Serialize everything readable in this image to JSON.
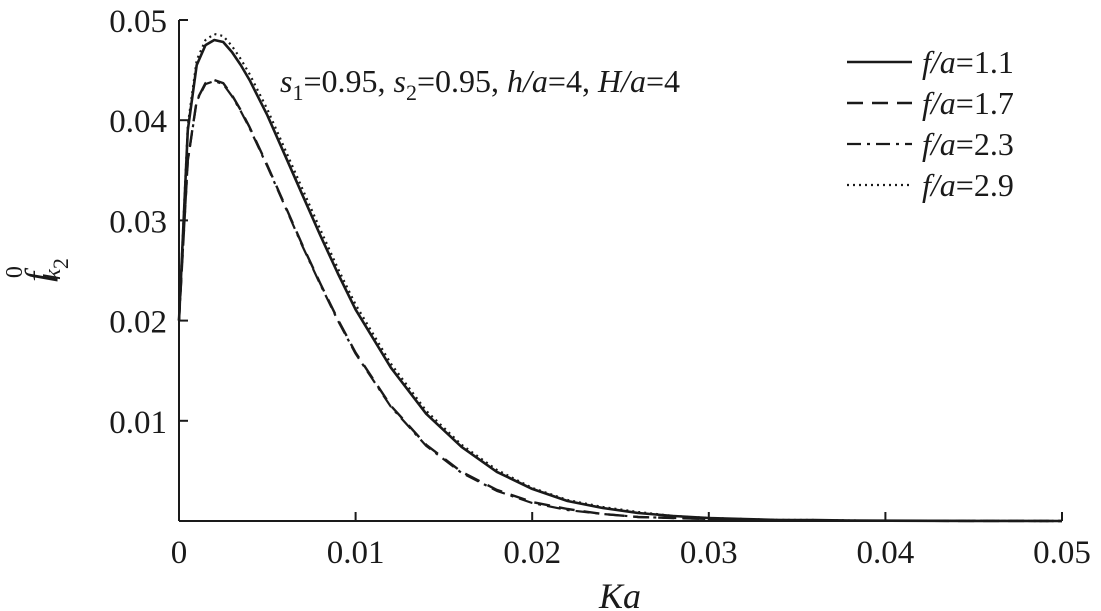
{
  "chart_data": {
    "type": "line",
    "xlabel": "Ka",
    "ylabel_main": "f",
    "ylabel_sup": "0",
    "ylabel_sub": "k",
    "ylabel_subsub": "2",
    "xlim": [
      0,
      0.05
    ],
    "ylim": [
      0,
      0.05
    ],
    "xticks": [
      {
        "value": 0,
        "label": "0"
      },
      {
        "value": 0.01,
        "label": "0.01"
      },
      {
        "value": 0.02,
        "label": "0.02"
      },
      {
        "value": 0.03,
        "label": "0.03"
      },
      {
        "value": 0.04,
        "label": "0.04"
      },
      {
        "value": 0.05,
        "label": "0.05"
      }
    ],
    "yticks": [
      {
        "value": 0.01,
        "label": "0.01"
      },
      {
        "value": 0.02,
        "label": "0.02"
      },
      {
        "value": 0.03,
        "label": "0.03"
      },
      {
        "value": 0.04,
        "label": "0.04"
      },
      {
        "value": 0.05,
        "label": "0.05"
      }
    ],
    "annotation": {
      "s1": "s",
      "s1_sub": "1",
      "s1_val": "=0.95, ",
      "s2": "s",
      "s2_sub": "2",
      "s2_val": "=0.95, ",
      "h": "h/a",
      "h_val": "=4, ",
      "H": "H/a",
      "H_val": "=4"
    },
    "grid": false,
    "legend_position": "top-right",
    "series": [
      {
        "name": "f/a=1.1",
        "name_var": "f/a",
        "name_val": "=1.1",
        "style": "solid",
        "x": [
          0,
          0.0005,
          0.001,
          0.0015,
          0.002,
          0.0025,
          0.003,
          0.0035,
          0.004,
          0.005,
          0.006,
          0.007,
          0.008,
          0.009,
          0.01,
          0.012,
          0.014,
          0.016,
          0.018,
          0.02,
          0.022,
          0.024,
          0.026,
          0.028,
          0.03,
          0.032,
          0.034,
          0.036,
          0.038,
          0.04,
          0.045,
          0.05
        ],
        "y": [
          0.02,
          0.039,
          0.0455,
          0.0475,
          0.048,
          0.0478,
          0.0468,
          0.0455,
          0.044,
          0.0405,
          0.0365,
          0.0325,
          0.0285,
          0.0247,
          0.0211,
          0.0153,
          0.0107,
          0.0074,
          0.0049,
          0.0032,
          0.002,
          0.0013,
          0.0008,
          0.0005,
          0.0003,
          0.0002,
          0.0001,
          0.0001,
          5e-05,
          3e-05,
          1e-05,
          0.0
        ]
      },
      {
        "name": "f/a=1.7",
        "name_var": "f/a",
        "name_val": "=1.7",
        "style": "dashed",
        "x": [
          0,
          0.0005,
          0.001,
          0.0015,
          0.002,
          0.0025,
          0.003,
          0.0035,
          0.004,
          0.005,
          0.006,
          0.007,
          0.008,
          0.009,
          0.01,
          0.012,
          0.014,
          0.016,
          0.018,
          0.02,
          0.022,
          0.024,
          0.026,
          0.028,
          0.03,
          0.032,
          0.034,
          0.036,
          0.038,
          0.04,
          0.045,
          0.05
        ],
        "y": [
          0.02,
          0.036,
          0.042,
          0.0437,
          0.044,
          0.0437,
          0.0425,
          0.041,
          0.0393,
          0.0355,
          0.0315,
          0.0275,
          0.0237,
          0.0201,
          0.0168,
          0.0115,
          0.0076,
          0.0049,
          0.0031,
          0.0019,
          0.0012,
          0.0007,
          0.0004,
          0.0003,
          0.0002,
          0.0001,
          0.0001,
          5e-05,
          3e-05,
          2e-05,
          1e-05,
          0.0
        ]
      },
      {
        "name": "f/a=2.3",
        "name_var": "f/a",
        "name_val": "=2.3",
        "style": "dashdot",
        "x": [
          0,
          0.0005,
          0.001,
          0.0015,
          0.002,
          0.0025,
          0.003,
          0.0035,
          0.004,
          0.005,
          0.006,
          0.007,
          0.008,
          0.009,
          0.01,
          0.012,
          0.014,
          0.016,
          0.018,
          0.02,
          0.022,
          0.024,
          0.026,
          0.028,
          0.03,
          0.032,
          0.034,
          0.036,
          0.038,
          0.04,
          0.045,
          0.05
        ],
        "y": [
          0.02,
          0.0359,
          0.0419,
          0.0436,
          0.0439,
          0.0436,
          0.0424,
          0.0409,
          0.0392,
          0.0354,
          0.0314,
          0.0274,
          0.0236,
          0.02,
          0.0167,
          0.0114,
          0.0075,
          0.0048,
          0.003,
          0.0018,
          0.0011,
          0.0007,
          0.0004,
          0.0003,
          0.0002,
          0.0001,
          0.0001,
          5e-05,
          3e-05,
          2e-05,
          1e-05,
          0.0
        ]
      },
      {
        "name": "f/a=2.9",
        "name_var": "f/a",
        "name_val": "=2.9",
        "style": "dotted",
        "x": [
          0,
          0.0005,
          0.001,
          0.0015,
          0.002,
          0.0025,
          0.003,
          0.0035,
          0.004,
          0.005,
          0.006,
          0.007,
          0.008,
          0.009,
          0.01,
          0.012,
          0.014,
          0.016,
          0.018,
          0.02,
          0.022,
          0.024,
          0.026,
          0.028,
          0.03,
          0.032,
          0.034,
          0.036,
          0.038,
          0.04,
          0.045,
          0.05
        ],
        "y": [
          0.02,
          0.0395,
          0.046,
          0.048,
          0.0486,
          0.0484,
          0.0474,
          0.0461,
          0.0446,
          0.0411,
          0.0371,
          0.0331,
          0.0291,
          0.0252,
          0.0216,
          0.0157,
          0.011,
          0.0076,
          0.0051,
          0.0033,
          0.0021,
          0.0014,
          0.0009,
          0.0005,
          0.0003,
          0.0002,
          0.0001,
          0.0001,
          5e-05,
          3e-05,
          1e-05,
          0.0
        ]
      }
    ]
  }
}
